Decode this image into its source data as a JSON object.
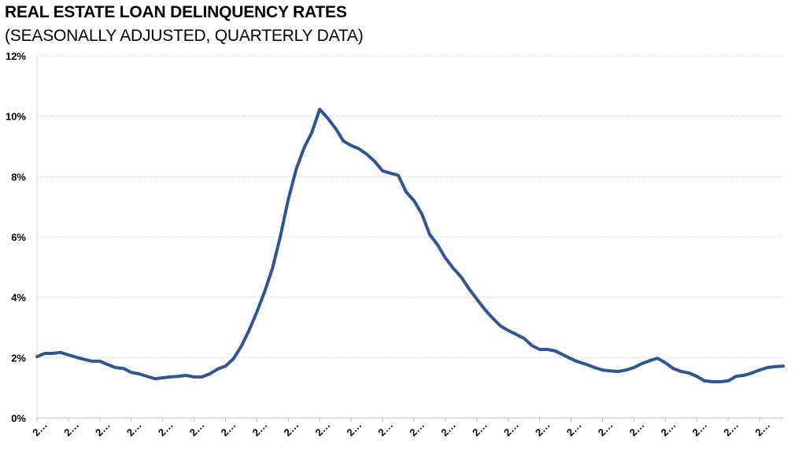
{
  "chart_data": {
    "type": "line",
    "title": "REAL ESTATE LOAN DELINQUENCY RATES",
    "subtitle": "(SEASONALLY ADJUSTED, QUARTERLY DATA)",
    "xlabel": "",
    "ylabel": "",
    "ylim": [
      0,
      12
    ],
    "y_ticks": [
      0,
      2,
      4,
      6,
      8,
      10,
      12
    ],
    "y_tick_labels": [
      "0%",
      "2%",
      "4%",
      "6%",
      "8%",
      "10%",
      "12%"
    ],
    "x_tick_every": 4,
    "x_tick_labels": [
      "2…",
      "2…",
      "2…",
      "2…",
      "2…",
      "2…",
      "2…",
      "2…",
      "2…",
      "2…",
      "2…",
      "2…",
      "2…",
      "2…",
      "2…",
      "2…",
      "2…",
      "2…",
      "2…",
      "2…",
      "2…",
      "2…",
      "2…",
      "2…"
    ],
    "grid": true,
    "legend": "none",
    "series": [
      {
        "name": "Real estate loan delinquency rate (%)",
        "color": "#2F5597",
        "values": [
          2.03,
          2.14,
          2.14,
          2.17,
          2.09,
          2.01,
          1.94,
          1.88,
          1.88,
          1.77,
          1.67,
          1.64,
          1.51,
          1.46,
          1.38,
          1.3,
          1.33,
          1.36,
          1.38,
          1.41,
          1.36,
          1.36,
          1.46,
          1.62,
          1.72,
          1.96,
          2.37,
          2.9,
          3.52,
          4.2,
          4.98,
          6.03,
          7.25,
          8.24,
          8.95,
          9.47,
          10.23,
          9.94,
          9.6,
          9.18,
          9.03,
          8.92,
          8.74,
          8.5,
          8.19,
          8.11,
          8.04,
          7.49,
          7.2,
          6.76,
          6.08,
          5.74,
          5.3,
          4.96,
          4.67,
          4.28,
          3.94,
          3.6,
          3.31,
          3.05,
          2.9,
          2.77,
          2.64,
          2.4,
          2.27,
          2.27,
          2.22,
          2.09,
          1.96,
          1.85,
          1.77,
          1.67,
          1.59,
          1.56,
          1.54,
          1.59,
          1.67,
          1.8,
          1.9,
          1.98,
          1.83,
          1.64,
          1.54,
          1.49,
          1.38,
          1.23,
          1.2,
          1.2,
          1.23,
          1.38,
          1.41,
          1.49,
          1.59,
          1.67,
          1.7,
          1.72
        ]
      }
    ]
  }
}
